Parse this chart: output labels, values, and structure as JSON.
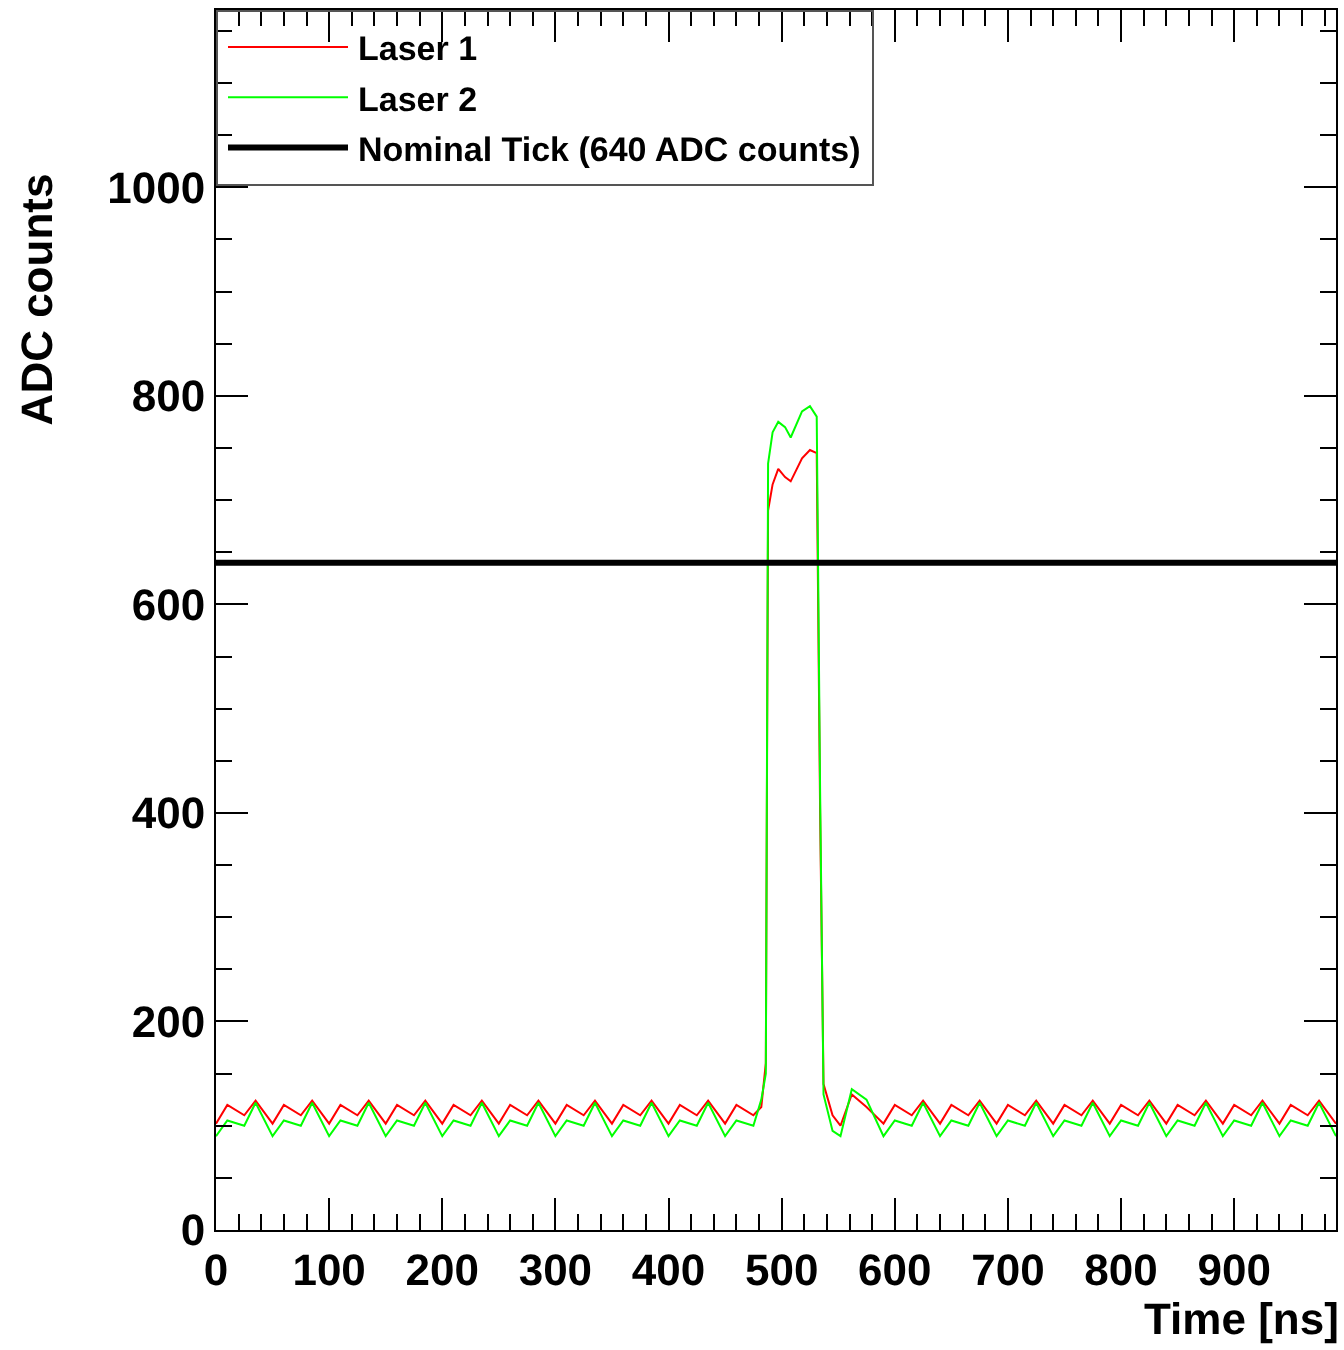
{
  "chart_data": {
    "type": "line",
    "xlabel": "Time [ns]",
    "ylabel": "ADC counts",
    "x": [
      0,
      10,
      25,
      35,
      50,
      60,
      75,
      85,
      100,
      110,
      125,
      135,
      150,
      160,
      175,
      185,
      200,
      210,
      225,
      235,
      250,
      260,
      275,
      285,
      300,
      310,
      325,
      335,
      350,
      360,
      375,
      385,
      400,
      410,
      425,
      435,
      450,
      460,
      475,
      482,
      486,
      488,
      492,
      497,
      503,
      508,
      518,
      525,
      531,
      534,
      537,
      545,
      552,
      562,
      575,
      590,
      600,
      615,
      625,
      640,
      650,
      665,
      675,
      690,
      700,
      715,
      725,
      740,
      750,
      765,
      775,
      790,
      800,
      815,
      825,
      840,
      850,
      865,
      875,
      890,
      900,
      915,
      925,
      940,
      950,
      965,
      975,
      990
    ],
    "series": [
      {
        "name": "Laser 1",
        "color": "#ff0000",
        "values": [
          102,
          120,
          110,
          124,
          102,
          120,
          110,
          124,
          102,
          120,
          110,
          124,
          102,
          120,
          110,
          124,
          102,
          120,
          110,
          124,
          102,
          120,
          110,
          124,
          102,
          120,
          110,
          124,
          102,
          120,
          110,
          124,
          102,
          120,
          110,
          124,
          102,
          120,
          110,
          118,
          160,
          690,
          715,
          730,
          722,
          718,
          740,
          748,
          745,
          400,
          140,
          110,
          100,
          130,
          118,
          102,
          120,
          110,
          124,
          102,
          120,
          110,
          124,
          102,
          120,
          110,
          124,
          102,
          120,
          110,
          124,
          102,
          120,
          110,
          124,
          102,
          120,
          110,
          124,
          102,
          120,
          110,
          124,
          102,
          120,
          110,
          124,
          102
        ]
      },
      {
        "name": "Laser 2",
        "color": "#00ff00",
        "values": [
          90,
          105,
          100,
          122,
          90,
          105,
          100,
          122,
          90,
          105,
          100,
          122,
          90,
          105,
          100,
          122,
          90,
          105,
          100,
          122,
          90,
          105,
          100,
          122,
          90,
          105,
          100,
          122,
          90,
          105,
          100,
          122,
          90,
          105,
          100,
          122,
          90,
          105,
          100,
          125,
          150,
          735,
          765,
          775,
          770,
          760,
          785,
          790,
          780,
          420,
          130,
          95,
          90,
          135,
          125,
          90,
          105,
          100,
          122,
          90,
          105,
          100,
          122,
          90,
          105,
          100,
          122,
          90,
          105,
          100,
          122,
          90,
          105,
          100,
          122,
          90,
          105,
          100,
          122,
          90,
          105,
          100,
          122,
          90,
          105,
          100,
          122,
          90
        ]
      }
    ],
    "ref_lines": [
      {
        "axis": "y",
        "value": 640,
        "label": "Nominal Tick (640 ADC counts)",
        "color": "#000000",
        "line_style": "solid"
      }
    ],
    "xlim": [
      0,
      990
    ],
    "xticks": [
      0,
      100,
      200,
      300,
      400,
      500,
      600,
      700,
      800,
      900
    ],
    "ylim": [
      0,
      1170
    ],
    "yticks": [
      0,
      200,
      400,
      600,
      800,
      1000
    ],
    "legend": "top",
    "marker": "none",
    "line_style": "solid"
  }
}
